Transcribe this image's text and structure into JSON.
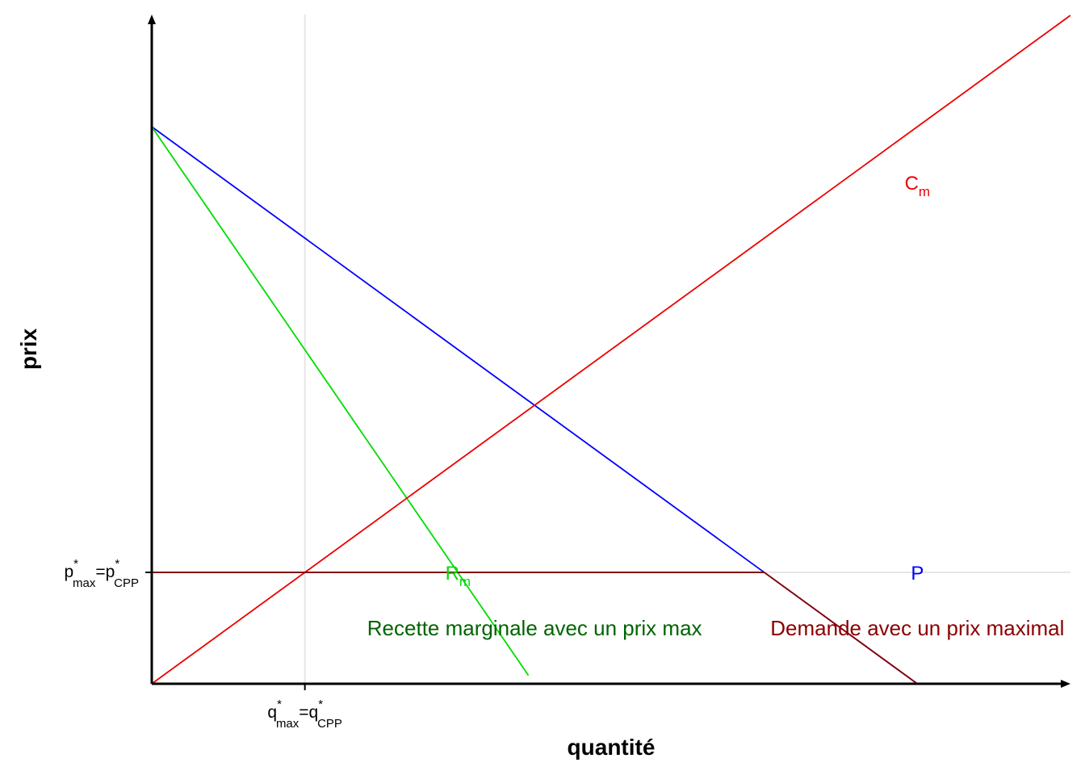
{
  "chart_data": {
    "type": "line",
    "title": "",
    "xlabel": "quantité",
    "ylabel": "prix",
    "xlim": [
      0,
      12
    ],
    "ylim": [
      0,
      12
    ],
    "grid": "reference lines at q* and p* only",
    "x_ticks": [
      {
        "x": 2,
        "main": "q",
        "sup1": "*",
        "sub1": "max",
        "eq": "=q",
        "sup2": "*",
        "sub2": "CPP"
      }
    ],
    "y_ticks": [
      {
        "y": 2,
        "main": "p",
        "sup1": "*",
        "sub1": "max",
        "eq": "=p",
        "sup2": "*",
        "sub2": "CPP"
      }
    ],
    "series": [
      {
        "key": "P",
        "color": "#0000ff",
        "points": [
          [
            0,
            10
          ],
          [
            10,
            0
          ]
        ]
      },
      {
        "key": "Rm",
        "color": "#00dd00",
        "points": [
          [
            0,
            10
          ],
          [
            4.92,
            0.15
          ]
        ]
      },
      {
        "key": "Cm",
        "color": "#ee0000",
        "points": [
          [
            0,
            0
          ],
          [
            12,
            12
          ]
        ]
      },
      {
        "key": "Rm_max",
        "color": "#006400",
        "points": [
          [
            0,
            2
          ],
          [
            8,
            2
          ]
        ]
      },
      {
        "key": "P_max",
        "color": "#8b0000",
        "points": [
          [
            0,
            2
          ],
          [
            8,
            2
          ],
          [
            10,
            0
          ]
        ]
      }
    ],
    "curve_labels": [
      {
        "key": "Cm",
        "main": "C",
        "sub": "m",
        "x": 10,
        "y": 9,
        "color": "#ee0000"
      },
      {
        "key": "P",
        "main": "P",
        "sub": "",
        "x": 10,
        "y": 2,
        "color": "#0000ff"
      },
      {
        "key": "Rm",
        "main": "R",
        "sub": "m",
        "x": 4,
        "y": 2,
        "color": "#00dd00"
      }
    ],
    "annotations": [
      {
        "text": "Recette marginale avec un prix max",
        "x": 5,
        "y": 1,
        "color": "#006400"
      },
      {
        "text": "Demande avec un prix maximal",
        "x": 10,
        "y": 1,
        "color": "#8b0000"
      }
    ]
  }
}
